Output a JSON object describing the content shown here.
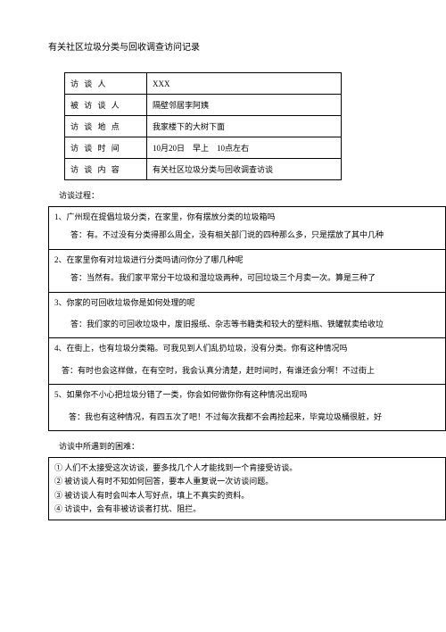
{
  "title": "有关社区垃圾分类与回收调查访问记录",
  "info": {
    "rows": [
      {
        "label": "访 谈 人",
        "value": "XXX"
      },
      {
        "label": "被 访 谈 人",
        "value": "隔壁邻居李阿姨"
      },
      {
        "label": "访 谈 地 点",
        "value": "我家楼下的大树下面"
      },
      {
        "label": "访 谈 时 间",
        "value": "10月20日　早上　10点左右"
      },
      {
        "label": "访 谈 内 容",
        "value": "有关社区垃圾分类与回收调查访谈"
      }
    ]
  },
  "processLabel": "访谈过程：",
  "qa": [
    {
      "q": "1、广州现在提倡垃圾分类，在家里，你有摆放分类的垃圾箱吗",
      "a": "答：有。不过没有分类得那么周全，没有相关部门说的四种那么多，只是摆放了其中几种"
    },
    {
      "q": "2、在家里你有对垃圾进行分类吗请问你分了哪几种呢",
      "a": "答：当然有。我们家平常分干垃圾和湿垃圾两种，可回垃圾三个月卖一次。算是三种了"
    },
    {
      "q": "3、你家的可回收垃圾你是如何处理的呢",
      "a": "答：我们家的可回收垃圾中，废旧报纸、杂志等书籍类和较大的塑料瓶、铁罐就卖给收垃"
    },
    {
      "q": "4、在街上，也有垃圾分类箱。可我见到人们乱扔垃圾，没有分类。你有这种情况吗",
      "a": "答：有时也会这样做，在有空时，我会认真分清楚，赶时间时，有谁还会分啊！不过街上"
    },
    {
      "q": "5、如果你不小心把垃圾分错了一类，你会如何做你你有这种情况出现吗",
      "a": "答：我也有这种情况，有四五次了吧！不过每次我都不会再捡起来，毕竟垃圾桶很脏，好"
    }
  ],
  "difficultiesLabel": "访谈中所遇到的困难：",
  "difficulties": [
    "① 人们不太接受这次访谈，要多找几个人才能找到一个肯接受访谈。",
    "② 被访谈人有时不知如何回答，要本人重复说一次访谈问题。",
    "③ 被访谈人有时会叫本人写好点，填上不真实的资料。",
    "④ 访谈中，会有非被访谈者打扰、阻拦。"
  ]
}
